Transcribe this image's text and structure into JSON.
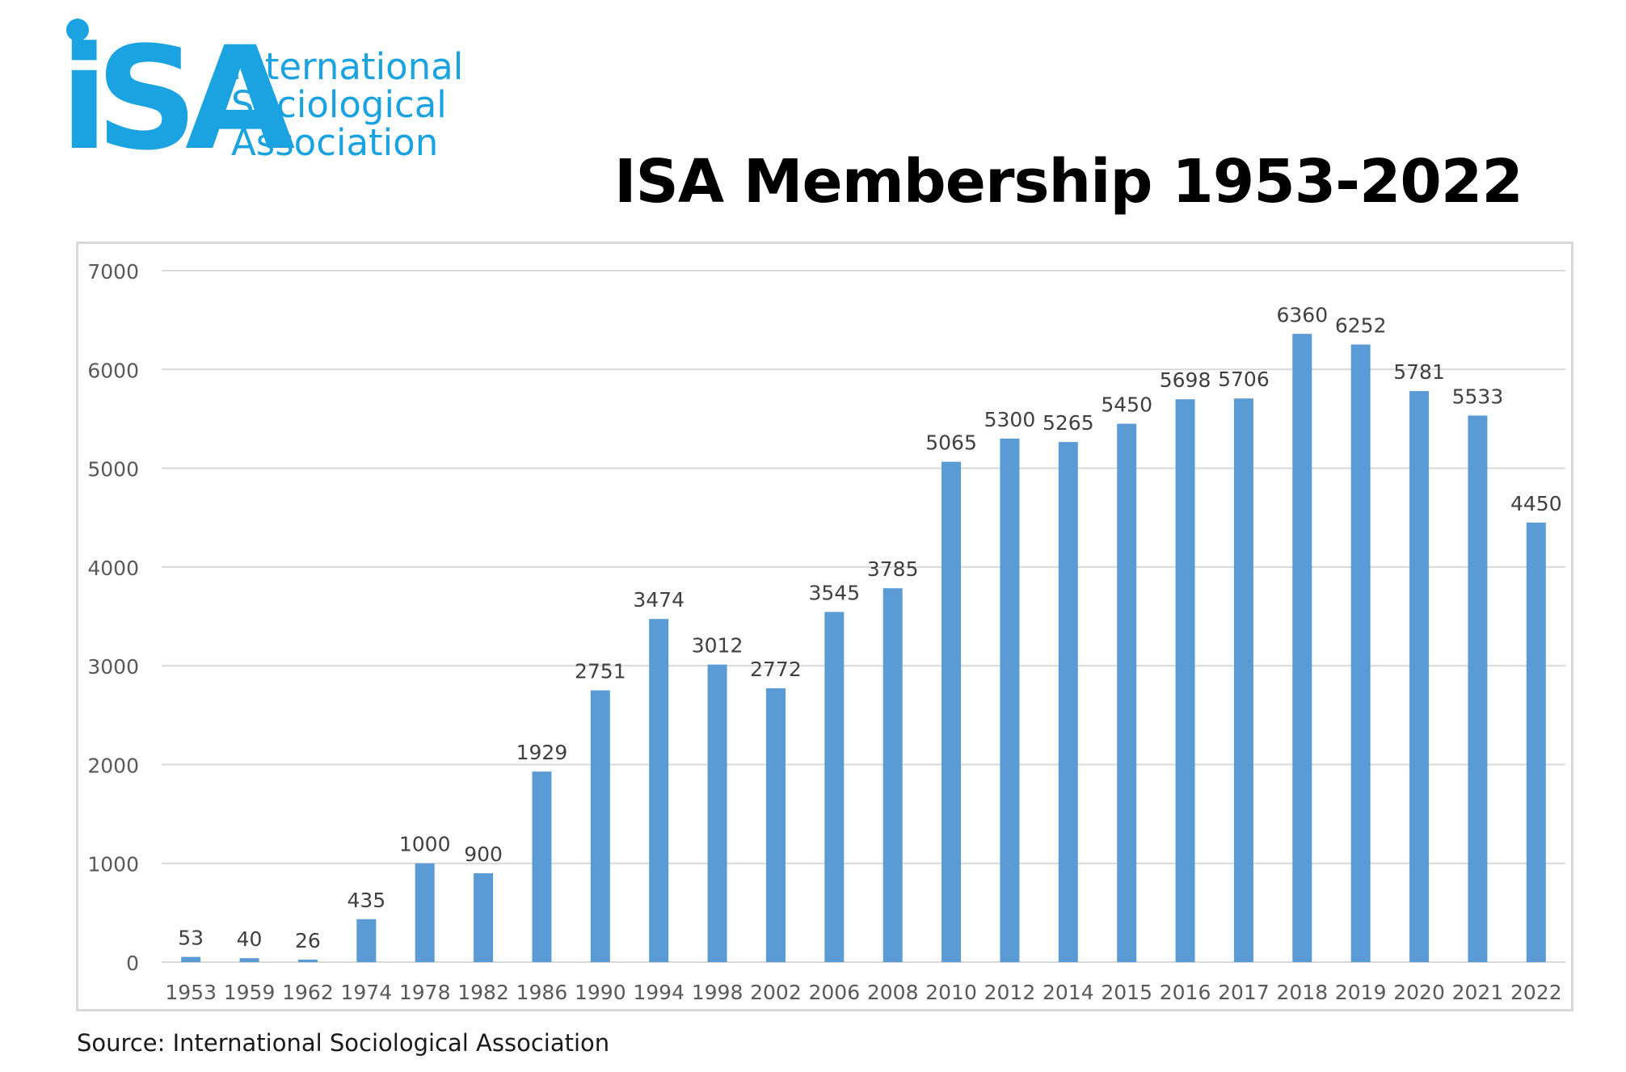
{
  "logo": {
    "mark": "iSA",
    "lines": [
      "International",
      "Sociological",
      "Association"
    ],
    "color": "#1aa3e0"
  },
  "source": "Source: International Sociological Association",
  "colors": {
    "bar": "#5b9bd5",
    "grid": "#d9d9d9",
    "axis_text": "#595959",
    "label_text": "#404040"
  },
  "chart_data": {
    "type": "bar",
    "title": "ISA Membership 1953-2022",
    "xlabel": "",
    "ylabel": "",
    "categories": [
      "1953",
      "1959",
      "1962",
      "1974",
      "1978",
      "1982",
      "1986",
      "1990",
      "1994",
      "1998",
      "2002",
      "2006",
      "2008",
      "2010",
      "2012",
      "2014",
      "2015",
      "2016",
      "2017",
      "2018",
      "2019",
      "2020",
      "2021",
      "2022"
    ],
    "values": [
      53,
      40,
      26,
      435,
      1000,
      900,
      1929,
      2751,
      3474,
      3012,
      2772,
      3545,
      3785,
      5065,
      5300,
      5265,
      5450,
      5698,
      5706,
      6360,
      6252,
      5781,
      5533,
      4450
    ],
    "ylim": [
      0,
      7000
    ],
    "yticks": [
      0,
      1000,
      2000,
      3000,
      4000,
      5000,
      6000,
      7000
    ],
    "grid": true,
    "legend": "none",
    "data_labels": true
  }
}
